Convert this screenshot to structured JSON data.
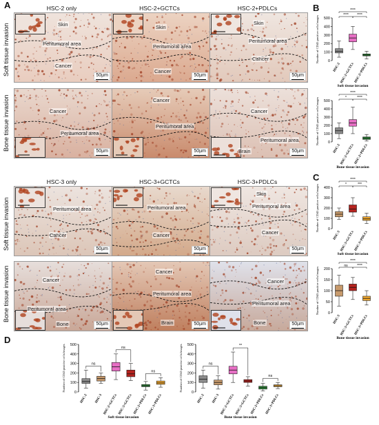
{
  "panel_A": {
    "letter": "A",
    "columns": [
      "HSC-2 only",
      "HSC-2+GCTCs",
      "HSC-2+PDLCs"
    ],
    "rows": [
      "Soft tissue invasion",
      "Bone tissue invasion"
    ],
    "scale": "50µm",
    "tiles": [
      {
        "labels": [
          "Skin",
          "Peritumoral area",
          "Cancer"
        ]
      },
      {
        "labels": [
          "Skin",
          "Peritumoral area",
          "Cancer"
        ]
      },
      {
        "labels": [
          "Skin",
          "Peritumoral area",
          "Cancer"
        ]
      },
      {
        "labels": [
          "Cancer",
          "Peritumoral area"
        ]
      },
      {
        "labels": [
          "Cancer",
          "Peritumoral area"
        ]
      },
      {
        "labels": [
          "Cancer",
          "Peritumoral area",
          "Brain"
        ]
      }
    ]
  },
  "panel_A2": {
    "columns": [
      "HSC-3 only",
      "HSC-3+GCTCs",
      "HSC-3+PDLCs"
    ],
    "rows": [
      "Soft tissue invasion",
      "Bone tissue invasion"
    ],
    "scale": "50µm",
    "tiles": [
      {
        "labels": [
          "Peritumoral area",
          "Cancer"
        ]
      },
      {
        "labels": [
          "Peritumoral area",
          "Cancer"
        ]
      },
      {
        "labels": [
          "Skin",
          "Peritumoral area",
          "Cancer"
        ]
      },
      {
        "labels": [
          "Cancer",
          "Peritumoral area",
          "Bone"
        ]
      },
      {
        "labels": [
          "Cancer",
          "Peritumoral area",
          "Brain"
        ]
      },
      {
        "labels": [
          "Cancer",
          "Peritumoral area",
          "Bone"
        ]
      }
    ]
  },
  "panel_B": {
    "letter": "B"
  },
  "panel_C": {
    "letter": "C"
  },
  "panel_D": {
    "letter": "D"
  },
  "colors": {
    "grey": "#8c8c8c",
    "pink": "#e66fc4",
    "green": "#2e8b3a",
    "tan": "#c79a6c",
    "red": "#b5231f",
    "orange": "#f0a830"
  },
  "chart_data": [
    {
      "id": "B-soft",
      "type": "box",
      "ylabel": "Number of CD45 positive cells/images",
      "xlabel": "Soft tissue invasion",
      "ylim": [
        0,
        500
      ],
      "yticks": [
        0,
        100,
        200,
        300,
        400,
        500
      ],
      "categories": [
        "HSC-2",
        "HSC-2+GCTCs",
        "HSC-2+PDLCs"
      ],
      "boxes": [
        {
          "min": 40,
          "q1": 90,
          "median": 110,
          "q3": 140,
          "max": 230,
          "color": "#8c8c8c"
        },
        {
          "min": 130,
          "q1": 220,
          "median": 265,
          "q3": 310,
          "max": 400,
          "color": "#e66fc4"
        },
        {
          "min": 20,
          "q1": 55,
          "median": 65,
          "q3": 78,
          "max": 110,
          "color": "#2e8b3a"
        }
      ],
      "significance": [
        "****",
        "****",
        "****"
      ]
    },
    {
      "id": "B-bone",
      "type": "box",
      "ylabel": "Number of CD45 positive cells/images",
      "xlabel": "Bone tissue invasion",
      "ylim": [
        0,
        500
      ],
      "yticks": [
        0,
        100,
        200,
        300,
        400,
        500
      ],
      "categories": [
        "HSC-2",
        "HSC-2+GCTCs",
        "HSC-2+PDLCs"
      ],
      "boxes": [
        {
          "min": 40,
          "q1": 100,
          "median": 135,
          "q3": 170,
          "max": 230,
          "color": "#8c8c8c"
        },
        {
          "min": 100,
          "q1": 190,
          "median": 230,
          "q3": 270,
          "max": 420,
          "color": "#e66fc4"
        },
        {
          "min": 10,
          "q1": 30,
          "median": 45,
          "q3": 60,
          "max": 90,
          "color": "#2e8b3a"
        }
      ],
      "significance": [
        "****",
        "*",
        "****"
      ]
    },
    {
      "id": "C-soft",
      "type": "box",
      "ylabel": "Number of CD45 positive cells/images",
      "xlabel": "Soft tissue invasion",
      "ylim": [
        0,
        400
      ],
      "yticks": [
        0,
        100,
        200,
        300,
        400
      ],
      "categories": [
        "HSC-3",
        "HSC-3+GCTCs",
        "HSC-3+PDLCs"
      ],
      "boxes": [
        {
          "min": 90,
          "q1": 115,
          "median": 140,
          "q3": 165,
          "max": 200,
          "color": "#c79a6c"
        },
        {
          "min": 120,
          "q1": 160,
          "median": 190,
          "q3": 230,
          "max": 300,
          "color": "#b5231f"
        },
        {
          "min": 50,
          "q1": 80,
          "median": 95,
          "q3": 115,
          "max": 150,
          "color": "#f0a830"
        }
      ],
      "significance": [
        "****",
        "*",
        "***"
      ]
    },
    {
      "id": "C-bone",
      "type": "box",
      "ylabel": "Number of CD45 positive cells/images",
      "xlabel": "Bone tissue invasion",
      "ylim": [
        0,
        200
      ],
      "yticks": [
        0,
        50,
        100,
        150,
        200
      ],
      "categories": [
        "HSC-3",
        "HSC-3+GCTCs",
        "HSC-3+PDLCs"
      ],
      "boxes": [
        {
          "min": 30,
          "q1": 75,
          "median": 100,
          "q3": 125,
          "max": 170,
          "color": "#c79a6c"
        },
        {
          "min": 60,
          "q1": 100,
          "median": 115,
          "q3": 130,
          "max": 160,
          "color": "#b5231f"
        },
        {
          "min": 35,
          "q1": 55,
          "median": 65,
          "q3": 75,
          "max": 100,
          "color": "#f0a830"
        }
      ],
      "significance": [
        "****",
        "ns",
        "****"
      ]
    },
    {
      "id": "D-soft",
      "type": "box",
      "ylabel": "Number of CD45 positive cells/images",
      "xlabel": "Soft tissue invasion",
      "ylim": [
        0,
        500
      ],
      "yticks": [
        0,
        100,
        200,
        300,
        400,
        500
      ],
      "categories": [
        "HSC-2",
        "HSC-3",
        "HSC-2+GCTCs",
        "HSC-3+GCTCs",
        "HSC-2+PDLCs",
        "HSC-3+PDLCs"
      ],
      "boxes": [
        {
          "min": 40,
          "q1": 90,
          "median": 110,
          "q3": 140,
          "max": 230,
          "color": "#8c8c8c"
        },
        {
          "min": 90,
          "q1": 115,
          "median": 140,
          "q3": 165,
          "max": 200,
          "color": "#c79a6c"
        },
        {
          "min": 130,
          "q1": 220,
          "median": 265,
          "q3": 310,
          "max": 400,
          "color": "#e66fc4"
        },
        {
          "min": 120,
          "q1": 160,
          "median": 190,
          "q3": 230,
          "max": 300,
          "color": "#b5231f"
        },
        {
          "min": 20,
          "q1": 55,
          "median": 65,
          "q3": 78,
          "max": 110,
          "color": "#2e8b3a"
        },
        {
          "min": 50,
          "q1": 80,
          "median": 95,
          "q3": 115,
          "max": 150,
          "color": "#f0a830"
        }
      ],
      "significance": [
        "ns",
        "ns",
        "ns"
      ]
    },
    {
      "id": "D-bone",
      "type": "box",
      "ylabel": "Number of CD45 positive cells/images",
      "xlabel": "Bone tissue invasion",
      "ylim": [
        0,
        500
      ],
      "yticks": [
        0,
        100,
        200,
        300,
        400,
        500
      ],
      "categories": [
        "HSC-2",
        "HSC-3",
        "HSC-2+GCTCs",
        "HSC-3+GCTCs",
        "HSC-2+PDLCs",
        "HSC-3+PDLCs"
      ],
      "boxes": [
        {
          "min": 40,
          "q1": 100,
          "median": 135,
          "q3": 170,
          "max": 230,
          "color": "#8c8c8c"
        },
        {
          "min": 30,
          "q1": 75,
          "median": 100,
          "q3": 125,
          "max": 170,
          "color": "#c79a6c"
        },
        {
          "min": 100,
          "q1": 190,
          "median": 230,
          "q3": 270,
          "max": 420,
          "color": "#e66fc4"
        },
        {
          "min": 60,
          "q1": 100,
          "median": 115,
          "q3": 130,
          "max": 160,
          "color": "#b5231f"
        },
        {
          "min": 10,
          "q1": 30,
          "median": 45,
          "q3": 60,
          "max": 90,
          "color": "#2e8b3a"
        },
        {
          "min": 35,
          "q1": 55,
          "median": 65,
          "q3": 75,
          "max": 100,
          "color": "#f0a830"
        }
      ],
      "significance": [
        "ns",
        "**",
        "ns"
      ]
    }
  ]
}
